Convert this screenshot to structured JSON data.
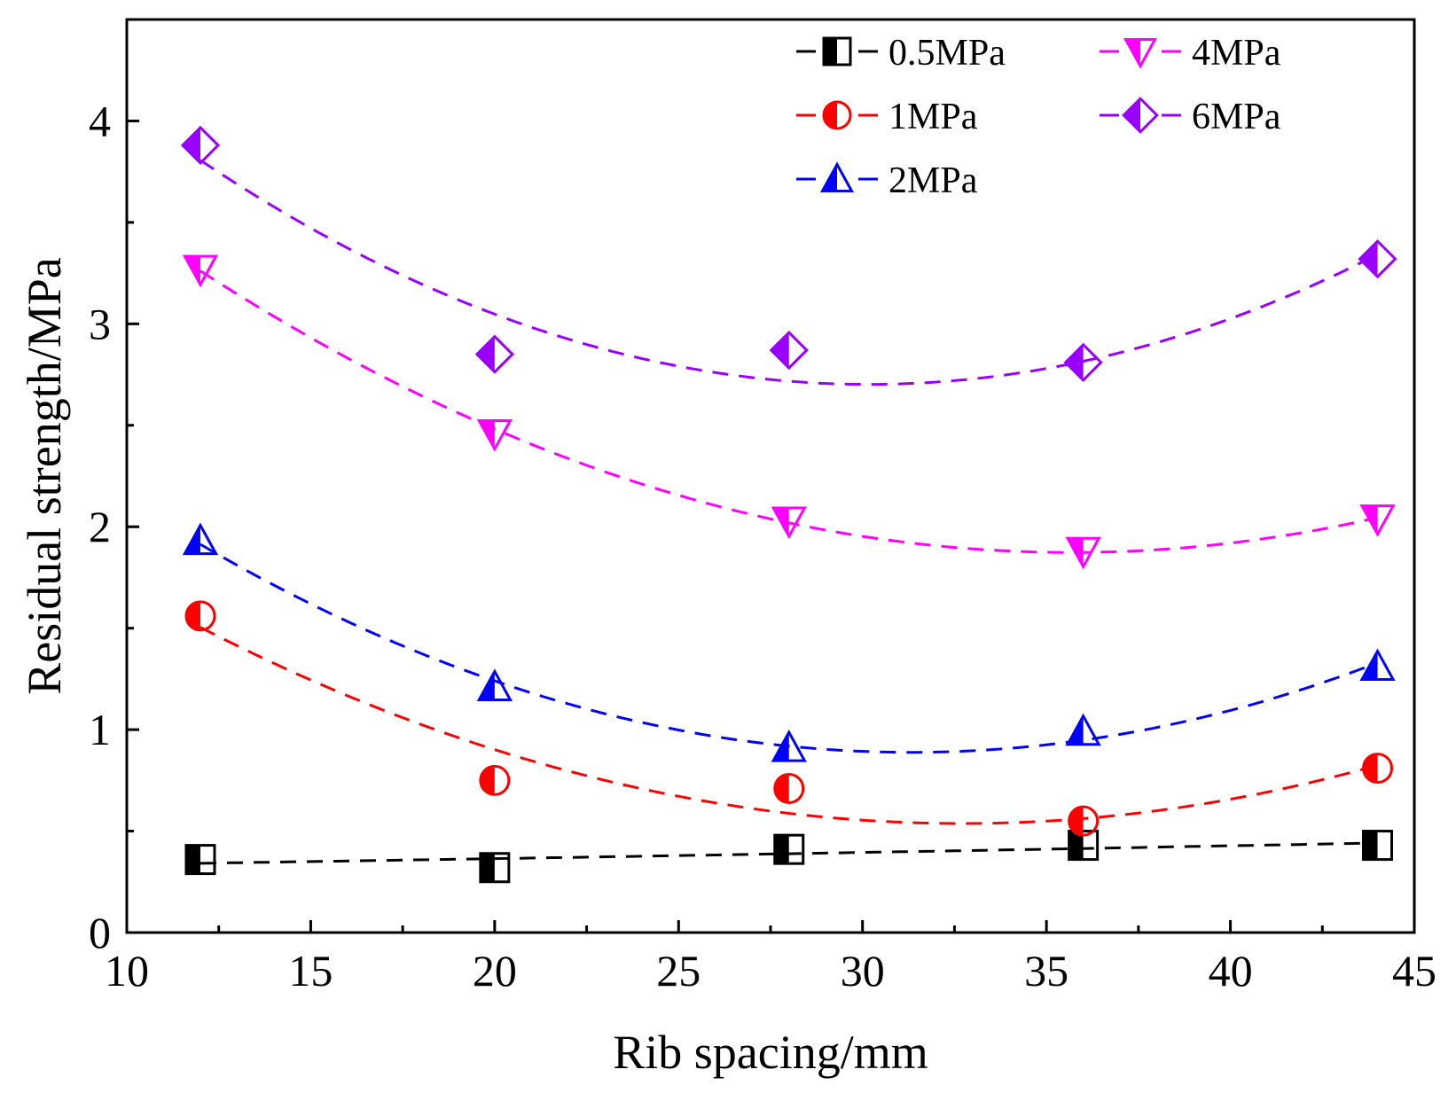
{
  "chart_data": {
    "type": "scatter",
    "title": "",
    "xlabel": "Rib spacing/mm",
    "ylabel": "Residual strength/MPa",
    "xlim": [
      10,
      45
    ],
    "ylim": [
      0,
      4.5
    ],
    "xticks": [
      10,
      15,
      20,
      25,
      30,
      35,
      40,
      45
    ],
    "yticks": [
      0,
      1,
      2,
      3,
      4
    ],
    "grid": false,
    "legend_position": "top-right",
    "fit_lines": "dashed quadratic fit per series",
    "x": [
      12,
      20,
      28,
      36,
      44
    ],
    "series": [
      {
        "name": "0.5MPa",
        "color": "#000000",
        "marker": "square-half",
        "values": [
          0.36,
          0.32,
          0.41,
          0.43,
          0.43
        ]
      },
      {
        "name": "1MPa",
        "color": "#ff0000",
        "marker": "circle-half",
        "values": [
          1.56,
          0.75,
          0.71,
          0.55,
          0.81
        ]
      },
      {
        "name": "2MPa",
        "color": "#0000ff",
        "marker": "triangle-up-half",
        "values": [
          1.93,
          1.21,
          0.91,
          0.99,
          1.31
        ]
      },
      {
        "name": "4MPa",
        "color": "#ff00ff",
        "marker": "triangle-down-half",
        "values": [
          3.27,
          2.46,
          2.03,
          1.88,
          2.04
        ]
      },
      {
        "name": "6MPa",
        "color": "#9900ff",
        "marker": "diamond-half",
        "values": [
          3.88,
          2.85,
          2.87,
          2.81,
          3.32
        ]
      }
    ]
  }
}
